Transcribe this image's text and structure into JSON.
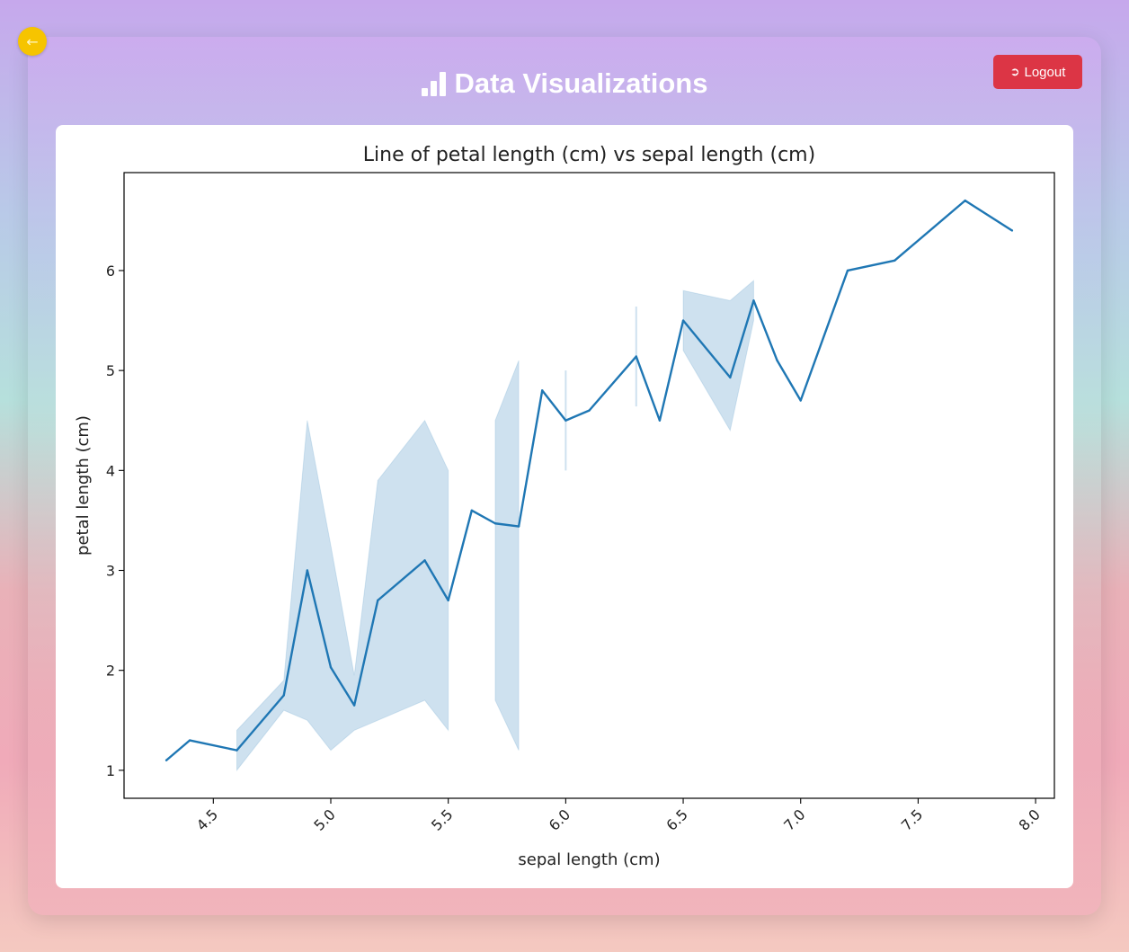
{
  "page": {
    "title": "Data Visualizations",
    "title_icon": "bar-chart-icon",
    "back_icon": "arrow-left-icon",
    "logout_label": "Logout",
    "logout_icon": "logout-icon",
    "colors": {
      "accent": "#dc3545",
      "back_button": "#f6c400",
      "line": "#1f77b4"
    }
  },
  "chart_data": {
    "type": "line",
    "title": "Line of petal length (cm) vs sepal length (cm)",
    "xlabel": "sepal length (cm)",
    "ylabel": "petal length (cm)",
    "xlim": [
      4.12,
      8.08
    ],
    "ylim": [
      0.72,
      6.98
    ],
    "xticks": [
      4.5,
      5.0,
      5.5,
      6.0,
      6.5,
      7.0,
      7.5,
      8.0
    ],
    "xtick_labels": [
      "4.5",
      "5.0",
      "5.5",
      "6.0",
      "6.5",
      "7.0",
      "7.5",
      "8.0"
    ],
    "yticks": [
      1,
      2,
      3,
      4,
      5,
      6
    ],
    "ytick_labels": [
      "1",
      "2",
      "3",
      "4",
      "5",
      "6"
    ],
    "grid": false,
    "series": [
      {
        "x": [
          4.3,
          4.4,
          4.6,
          4.8,
          4.9,
          5.0,
          5.1,
          5.2,
          5.4,
          5.5,
          5.6,
          5.7,
          5.8,
          5.9,
          6.0,
          6.1,
          6.3,
          6.4,
          6.5,
          6.7,
          6.8,
          6.9,
          7.0,
          7.2,
          7.4,
          7.7,
          7.9
        ],
        "y": [
          1.1,
          1.3,
          1.2,
          1.75,
          3.0,
          2.03,
          1.65,
          2.7,
          3.1,
          2.7,
          3.6,
          3.47,
          3.44,
          4.8,
          4.5,
          4.6,
          5.14,
          4.5,
          5.5,
          4.93,
          5.7,
          5.1,
          4.7,
          6.0,
          6.1,
          6.7,
          6.4
        ],
        "ci_upper": [
          null,
          null,
          1.4,
          1.9,
          4.5,
          3.25,
          1.95,
          3.9,
          4.5,
          4.0,
          null,
          4.5,
          5.1,
          null,
          5.0,
          null,
          5.64,
          null,
          5.8,
          5.7,
          5.9,
          null,
          null,
          null,
          null,
          null,
          null
        ],
        "ci_lower": [
          null,
          null,
          1.0,
          1.6,
          1.5,
          1.2,
          1.4,
          1.5,
          1.7,
          1.4,
          null,
          1.7,
          1.2,
          null,
          4.0,
          null,
          4.64,
          null,
          5.2,
          4.4,
          5.5,
          null,
          null,
          null,
          null,
          null,
          null
        ]
      }
    ]
  }
}
